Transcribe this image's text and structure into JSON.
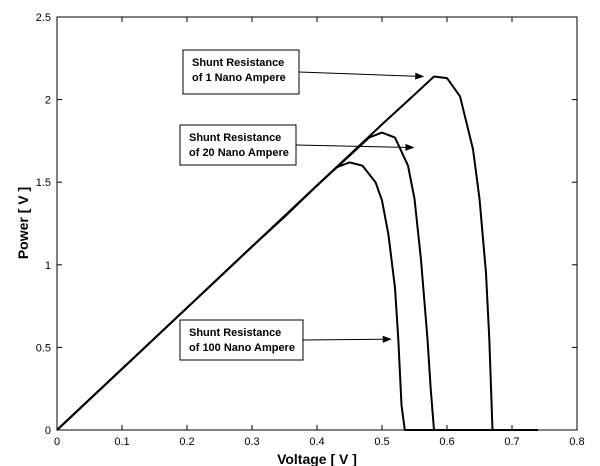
{
  "chart_data": {
    "type": "line",
    "title": "",
    "xlabel": "Voltage [ V ]",
    "ylabel": "Power [ V ]",
    "xlim": [
      0,
      0.8
    ],
    "ylim": [
      0,
      2.5
    ],
    "xticks": [
      0,
      0.1,
      0.2,
      0.3,
      0.4,
      0.5,
      0.6,
      0.7,
      0.8
    ],
    "xtick_labels": [
      "0",
      "0.1",
      "0.2",
      "0.3",
      "0.4",
      "0.5",
      "0.6",
      "0.7",
      "0.8"
    ],
    "yticks": [
      0,
      0.5,
      1,
      1.5,
      2,
      2.5
    ],
    "ytick_labels": [
      "0",
      "0.5",
      "1",
      "1.5",
      "2",
      "2.5"
    ],
    "grid": false,
    "legend": "none",
    "series": [
      {
        "x": [
          0,
          0.1,
          0.2,
          0.3,
          0.35,
          0.4,
          0.43,
          0.45,
          0.47,
          0.49,
          0.5,
          0.51,
          0.52,
          0.525,
          0.53,
          0.535,
          0.74
        ],
        "y": [
          0,
          0.37,
          0.74,
          1.11,
          1.29,
          1.48,
          1.59,
          1.62,
          1.6,
          1.5,
          1.39,
          1.18,
          0.86,
          0.55,
          0.15,
          0,
          0
        ]
      },
      {
        "x": [
          0,
          0.1,
          0.2,
          0.3,
          0.4,
          0.45,
          0.48,
          0.5,
          0.52,
          0.54,
          0.55,
          0.56,
          0.57,
          0.575,
          0.58
        ],
        "y": [
          0,
          0.37,
          0.74,
          1.11,
          1.48,
          1.66,
          1.77,
          1.8,
          1.77,
          1.6,
          1.4,
          1.03,
          0.55,
          0.25,
          0
        ]
      },
      {
        "x": [
          0,
          0.1,
          0.2,
          0.3,
          0.4,
          0.5,
          0.55,
          0.58,
          0.6,
          0.62,
          0.64,
          0.65,
          0.66,
          0.665,
          0.67
        ],
        "y": [
          0,
          0.37,
          0.74,
          1.11,
          1.48,
          1.85,
          2.03,
          2.14,
          2.13,
          2.02,
          1.7,
          1.4,
          0.95,
          0.55,
          0
        ]
      }
    ],
    "annotations": [
      {
        "line1": "Shunt Resistance",
        "line2": "of 1 Nano Ampere",
        "target": [
          0.565,
          2.14
        ]
      },
      {
        "line1": "Shunt Resistance",
        "line2": "of 20 Nano Ampere",
        "target": [
          0.55,
          1.71
        ]
      },
      {
        "line1": "Shunt Resistance",
        "line2": "of 100 Nano Ampere",
        "target": [
          0.515,
          0.55
        ]
      }
    ]
  }
}
